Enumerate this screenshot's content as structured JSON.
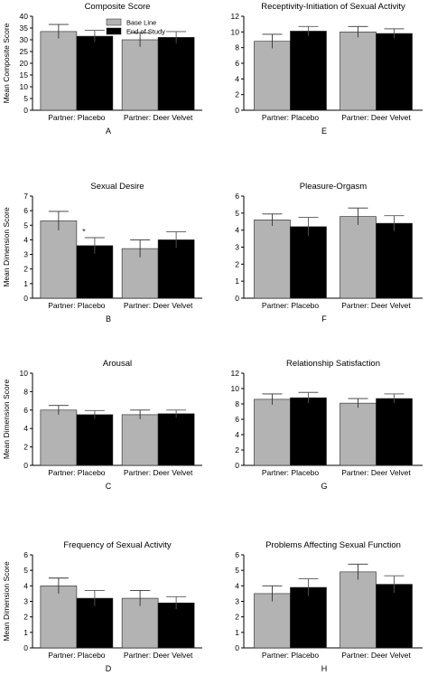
{
  "legend": [
    "Base Line",
    "End of Study"
  ],
  "colors": {
    "baseline": "#b3b3b3",
    "end": "#000000",
    "axis": "#000000"
  },
  "chart_data": [
    {
      "type": "bar",
      "panel": "A",
      "title": "Composite Score",
      "ylabel": "Mean Composite Score",
      "ylim": [
        0,
        40
      ],
      "yticks": [
        0,
        5,
        10,
        15,
        20,
        25,
        30,
        35,
        40
      ],
      "categories": [
        "Partner: Placebo",
        "Partner: Deer Velvet"
      ],
      "series": [
        {
          "name": "Base Line",
          "values": [
            33.5,
            30.0
          ],
          "errors": [
            3.0,
            3.0
          ]
        },
        {
          "name": "End of Study",
          "values": [
            31.5,
            31.0
          ],
          "errors": [
            2.5,
            2.5
          ]
        }
      ],
      "legend": "top-center",
      "annotations": []
    },
    {
      "type": "bar",
      "panel": "E",
      "title": "Receptivity-Initiation of Sexual Activity",
      "ylabel": "",
      "ylim": [
        0,
        12
      ],
      "yticks": [
        0,
        2,
        4,
        6,
        8,
        10,
        12
      ],
      "categories": [
        "Partner: Placebo",
        "Partner: Deer Velvet"
      ],
      "series": [
        {
          "name": "Base Line",
          "values": [
            8.8,
            10.0
          ],
          "errors": [
            0.9,
            0.7
          ]
        },
        {
          "name": "End of Study",
          "values": [
            10.1,
            9.8
          ],
          "errors": [
            0.6,
            0.6
          ]
        }
      ],
      "annotations": []
    },
    {
      "type": "bar",
      "panel": "B",
      "title": "Sexual Desire",
      "ylabel": "Mean Dimension Score",
      "ylim": [
        0,
        7
      ],
      "yticks": [
        0,
        1,
        2,
        3,
        4,
        5,
        6,
        7
      ],
      "categories": [
        "Partner: Placebo",
        "Partner: Deer Velvet"
      ],
      "series": [
        {
          "name": "Base Line",
          "values": [
            5.3,
            3.4
          ],
          "errors": [
            0.65,
            0.6
          ]
        },
        {
          "name": "End of Study",
          "values": [
            3.6,
            4.0
          ],
          "errors": [
            0.55,
            0.55
          ]
        }
      ],
      "annotations": [
        "*"
      ]
    },
    {
      "type": "bar",
      "panel": "F",
      "title": "Pleasure-Orgasm",
      "ylabel": "",
      "ylim": [
        0,
        6
      ],
      "yticks": [
        0,
        1,
        2,
        3,
        4,
        5,
        6
      ],
      "categories": [
        "Partner: Placebo",
        "Partner: Deer Velvet"
      ],
      "series": [
        {
          "name": "Base Line",
          "values": [
            4.6,
            4.8
          ],
          "errors": [
            0.35,
            0.5
          ]
        },
        {
          "name": "End of Study",
          "values": [
            4.2,
            4.4
          ],
          "errors": [
            0.55,
            0.45
          ]
        }
      ],
      "annotations": []
    },
    {
      "type": "bar",
      "panel": "C",
      "title": "Arousal",
      "ylabel": "Mean Dimension Score",
      "ylim": [
        0,
        10
      ],
      "yticks": [
        0,
        2,
        4,
        6,
        8,
        10
      ],
      "categories": [
        "Partner: Placebo",
        "Partner: Deer Velvet"
      ],
      "series": [
        {
          "name": "Base Line",
          "values": [
            6.0,
            5.5
          ],
          "errors": [
            0.5,
            0.5
          ]
        },
        {
          "name": "End of Study",
          "values": [
            5.5,
            5.6
          ],
          "errors": [
            0.45,
            0.4
          ]
        }
      ],
      "annotations": []
    },
    {
      "type": "bar",
      "panel": "G",
      "title": "Relationship Satisfaction",
      "ylabel": "",
      "ylim": [
        0,
        12
      ],
      "yticks": [
        0,
        2,
        4,
        6,
        8,
        10,
        12
      ],
      "categories": [
        "Partner: Placebo",
        "Partner: Deer Velvet"
      ],
      "series": [
        {
          "name": "Base Line",
          "values": [
            8.6,
            8.1
          ],
          "errors": [
            0.7,
            0.6
          ]
        },
        {
          "name": "End of Study",
          "values": [
            8.8,
            8.7
          ],
          "errors": [
            0.7,
            0.6
          ]
        }
      ],
      "annotations": []
    },
    {
      "type": "bar",
      "panel": "D",
      "title": "Frequency of Sexual Activity",
      "ylabel": "Mean Dimension Score",
      "ylim": [
        0,
        6
      ],
      "yticks": [
        0,
        1,
        2,
        3,
        4,
        5,
        6
      ],
      "categories": [
        "Partner: Placebo",
        "Partner: Deer Velvet"
      ],
      "series": [
        {
          "name": "Base Line",
          "values": [
            4.0,
            3.2
          ],
          "errors": [
            0.5,
            0.5
          ]
        },
        {
          "name": "End of Study",
          "values": [
            3.2,
            2.9
          ],
          "errors": [
            0.5,
            0.4
          ]
        }
      ],
      "annotations": []
    },
    {
      "type": "bar",
      "panel": "H",
      "title": "Problems Affecting Sexual Function",
      "ylabel": "",
      "ylim": [
        0,
        6
      ],
      "yticks": [
        0,
        1,
        2,
        3,
        4,
        5,
        6
      ],
      "categories": [
        "Partner: Placebo",
        "Partner: Deer Velvet"
      ],
      "series": [
        {
          "name": "Base Line",
          "values": [
            3.5,
            4.9
          ],
          "errors": [
            0.5,
            0.5
          ]
        },
        {
          "name": "End of Study",
          "values": [
            3.9,
            4.1
          ],
          "errors": [
            0.55,
            0.55
          ]
        }
      ],
      "annotations": []
    }
  ]
}
